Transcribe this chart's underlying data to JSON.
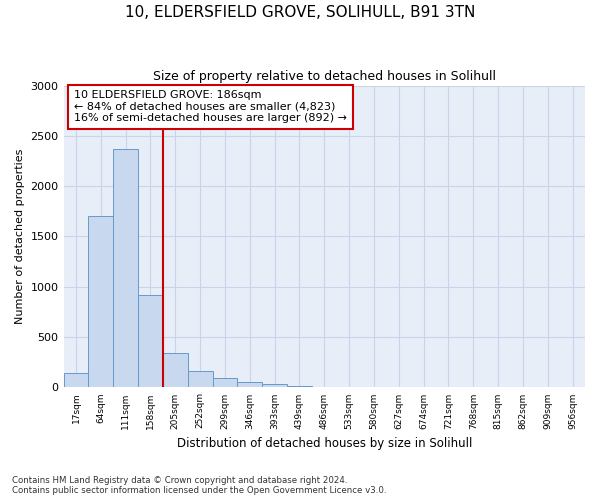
{
  "title_line1": "10, ELDERSFIELD GROVE, SOLIHULL, B91 3TN",
  "title_line2": "Size of property relative to detached houses in Solihull",
  "xlabel": "Distribution of detached houses by size in Solihull",
  "ylabel": "Number of detached properties",
  "footnote1": "Contains HM Land Registry data © Crown copyright and database right 2024.",
  "footnote2": "Contains public sector information licensed under the Open Government Licence v3.0.",
  "bar_labels": [
    "17sqm",
    "64sqm",
    "111sqm",
    "158sqm",
    "205sqm",
    "252sqm",
    "299sqm",
    "346sqm",
    "393sqm",
    "439sqm",
    "486sqm",
    "533sqm",
    "580sqm",
    "627sqm",
    "674sqm",
    "721sqm",
    "768sqm",
    "815sqm",
    "862sqm",
    "909sqm",
    "956sqm"
  ],
  "bar_values": [
    140,
    1700,
    2370,
    920,
    340,
    160,
    90,
    50,
    30,
    15,
    5,
    0,
    0,
    0,
    0,
    0,
    0,
    0,
    0,
    0,
    0
  ],
  "bar_color": "#c8d8ee",
  "bar_edgecolor": "#6699cc",
  "reference_line_x": 3.5,
  "reference_line_color": "#cc0000",
  "ylim": [
    0,
    3000
  ],
  "yticks": [
    0,
    500,
    1000,
    1500,
    2000,
    2500,
    3000
  ],
  "annotation_text": "10 ELDERSFIELD GROVE: 186sqm\n← 84% of detached houses are smaller (4,823)\n16% of semi-detached houses are larger (892) →",
  "annotation_box_edgecolor": "#cc0000",
  "annotation_box_facecolor": "#ffffff",
  "grid_color": "#c8d4e8",
  "background_color": "#e8eef8",
  "plot_background": "#e8eef8",
  "fig_background": "#ffffff"
}
